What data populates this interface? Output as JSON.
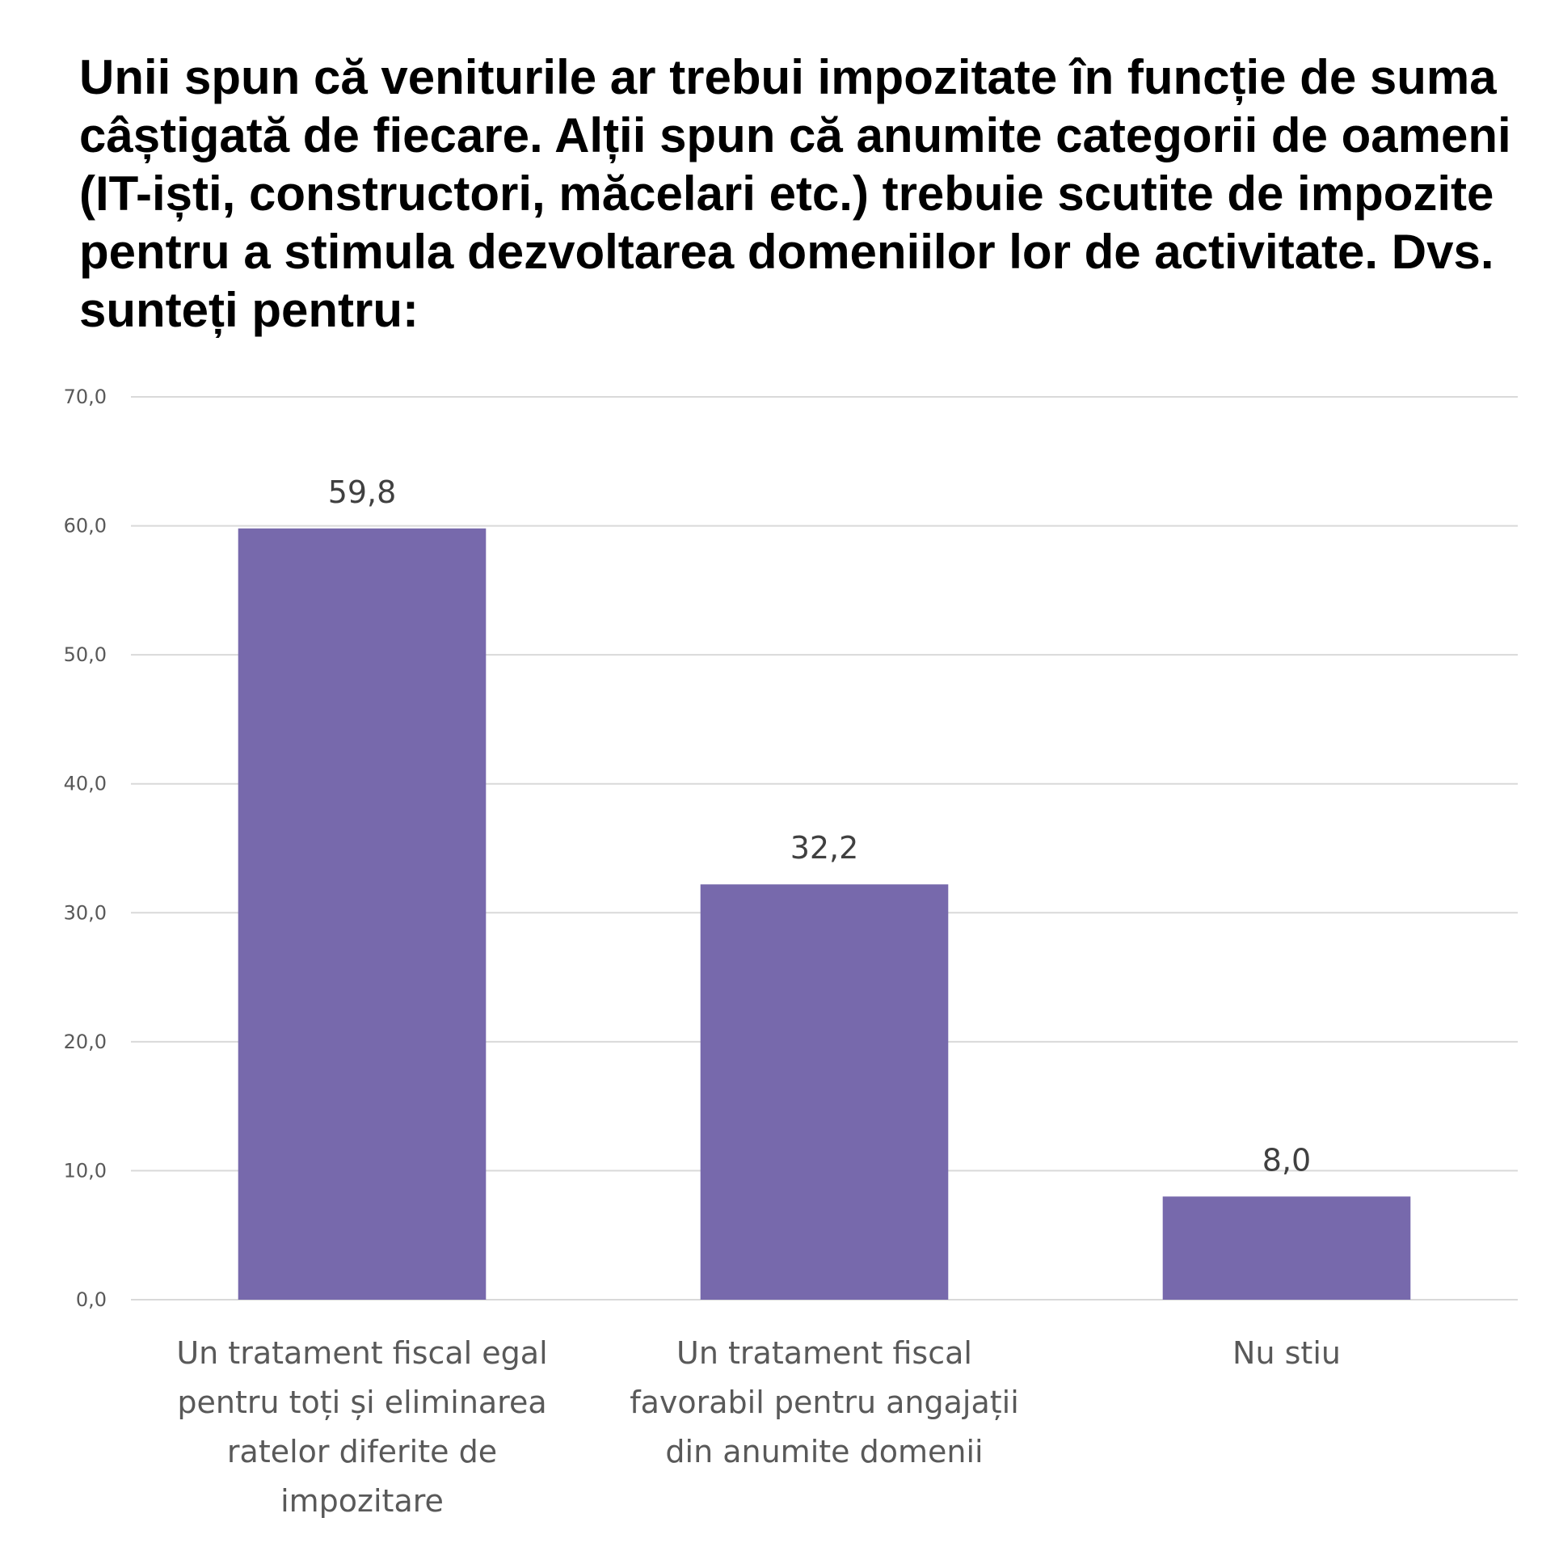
{
  "chart_data": {
    "type": "bar",
    "title": "Unii spun că veniturile ar trebui impozitate în funcție de suma câștigată de fiecare. Alții spun că anumite categorii de oameni (IT-iști, constructori, măcelari etc.) trebuie scutite de impozite pentru a stimula dezvoltarea domeniilor lor de activitate. Dvs. sunteți pentru:",
    "categories": [
      [
        "Un tratament fiscal egal",
        "pentru toți și eliminarea",
        "ratelor diferite de",
        "impozitare"
      ],
      [
        "Un tratament fiscal",
        "favorabil pentru angajații",
        "din anumite domenii"
      ],
      [
        "Nu stiu"
      ]
    ],
    "values": [
      59.8,
      32.2,
      8.0
    ],
    "value_labels": [
      "59,8",
      "32,2",
      "8,0"
    ],
    "yticks": [
      "0,0",
      "10,0",
      "20,0",
      "30,0",
      "40,0",
      "50,0",
      "60,0",
      "70,0"
    ],
    "ylim": [
      0,
      70
    ],
    "ytick_step": 10,
    "grid": true,
    "legend": "none",
    "bar_color": "#7769AC",
    "grid_color": "#D9D9D9"
  }
}
